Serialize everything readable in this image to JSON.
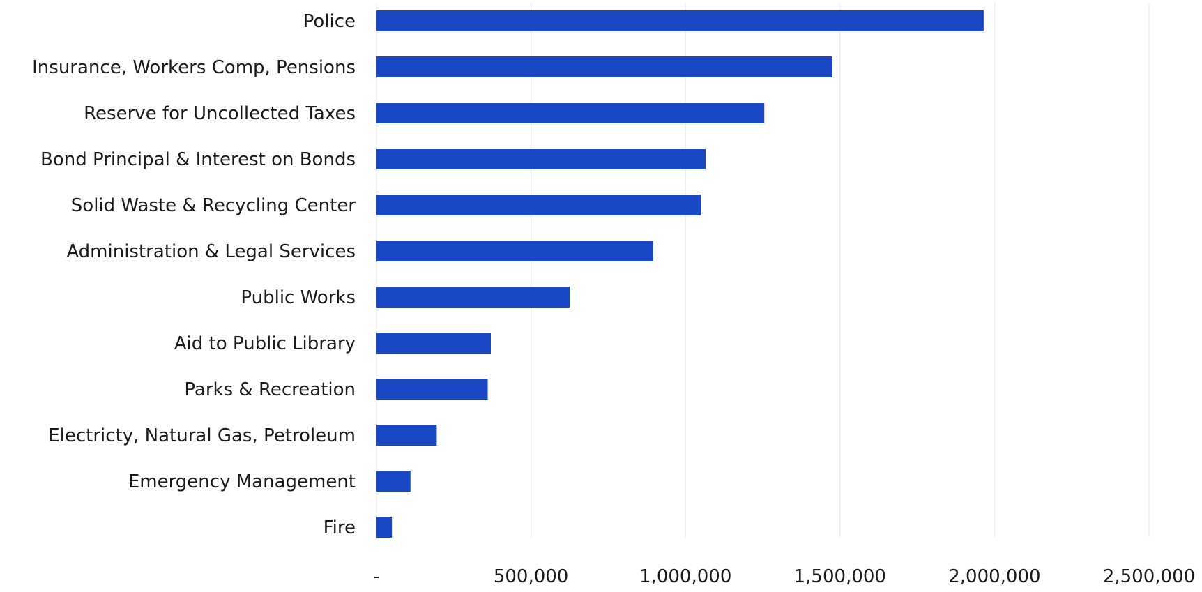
{
  "chart_data": {
    "type": "bar",
    "orientation": "horizontal",
    "categories": [
      "Police",
      "Insurance, Workers Comp, Pensions",
      "Reserve for Uncollected Taxes",
      "Bond Principal & Interest on Bonds",
      "Solid Waste & Recycling Center",
      "Administration & Legal Services",
      "Public Works",
      "Aid to Public Library",
      "Parks & Recreation",
      "Electricty, Natural Gas, Petroleum",
      "Emergency Management",
      "Fire"
    ],
    "values": [
      1965000,
      1475000,
      1255000,
      1065000,
      1050000,
      895000,
      625000,
      370000,
      360000,
      195000,
      110000,
      50000
    ],
    "xlim": [
      0,
      2500000
    ],
    "x_ticks": [
      0,
      500000,
      1000000,
      1500000,
      2000000,
      2500000
    ],
    "x_tick_labels": [
      "-",
      "500,000",
      "1,000,000",
      "1,500,000",
      "2,000,000",
      "2,500,000"
    ],
    "grid": true,
    "legend": "none",
    "colors": {
      "bar": "#1a47c4"
    }
  }
}
